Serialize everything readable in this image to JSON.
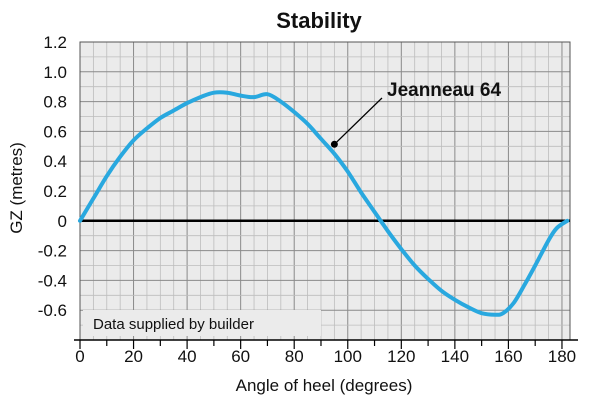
{
  "chart_data": {
    "type": "line",
    "title": "Stability",
    "xlabel": "Angle of heel (degrees)",
    "ylabel": "GZ (metres)",
    "xlim": [
      0,
      183
    ],
    "ylim": [
      -0.8,
      1.2
    ],
    "xticks": [
      0,
      20,
      40,
      60,
      80,
      100,
      120,
      140,
      160,
      180
    ],
    "yticks": [
      1.2,
      1.0,
      0.8,
      0.6,
      0.4,
      0.2,
      0,
      -0.2,
      -0.4,
      -0.6
    ],
    "ytick_labels": [
      "1.2",
      "1.0",
      "0.8",
      "0.6",
      "0.4",
      "0.2",
      "0",
      "-0.2",
      "-0.4",
      "-0.6"
    ],
    "grid": true,
    "note": "Data supplied by builder",
    "series": [
      {
        "name": "Jeanneau 64",
        "color": "#29a8df",
        "x": [
          0,
          5,
          10,
          15,
          20,
          25,
          30,
          35,
          40,
          45,
          50,
          55,
          60,
          65,
          70,
          75,
          80,
          85,
          90,
          95,
          100,
          105,
          110,
          115,
          120,
          125,
          130,
          135,
          140,
          145,
          150,
          155,
          158,
          162,
          166,
          170,
          175,
          178,
          182
        ],
        "y": [
          0,
          0.15,
          0.3,
          0.43,
          0.54,
          0.62,
          0.69,
          0.74,
          0.79,
          0.83,
          0.86,
          0.86,
          0.84,
          0.83,
          0.85,
          0.8,
          0.73,
          0.65,
          0.55,
          0.45,
          0.33,
          0.19,
          0.06,
          -0.07,
          -0.19,
          -0.3,
          -0.39,
          -0.47,
          -0.53,
          -0.58,
          -0.62,
          -0.63,
          -0.62,
          -0.55,
          -0.43,
          -0.3,
          -0.13,
          -0.05,
          0
        ]
      }
    ]
  }
}
